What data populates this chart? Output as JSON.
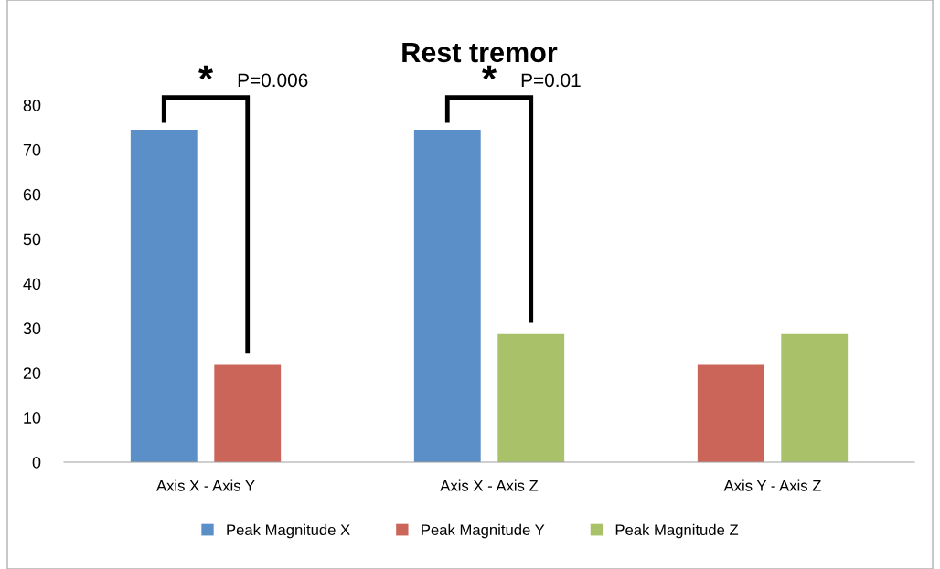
{
  "chart_data": {
    "type": "bar",
    "title": "Rest tremor",
    "categories": [
      "Axis X - Axis Y",
      "Axis X - Axis Z",
      "Axis Y - Axis Z"
    ],
    "series": [
      {
        "name": "Peak Magnitude X",
        "color": "#5b8fc7",
        "values": [
          74.5,
          74.5,
          null
        ]
      },
      {
        "name": "Peak Magnitude Y",
        "color": "#cb6459",
        "values": [
          21.8,
          null,
          21.8
        ]
      },
      {
        "name": "Peak Magnitude Z",
        "color": "#a9c26a",
        "values": [
          null,
          28.7,
          28.7
        ]
      }
    ],
    "ylim": [
      0,
      80
    ],
    "yticks": [
      0,
      10,
      20,
      30,
      40,
      50,
      60,
      70,
      80
    ],
    "grid": false,
    "legend": "bottom",
    "annotations": [
      "*",
      "P=0.006",
      "*",
      "P=0.01"
    ]
  }
}
